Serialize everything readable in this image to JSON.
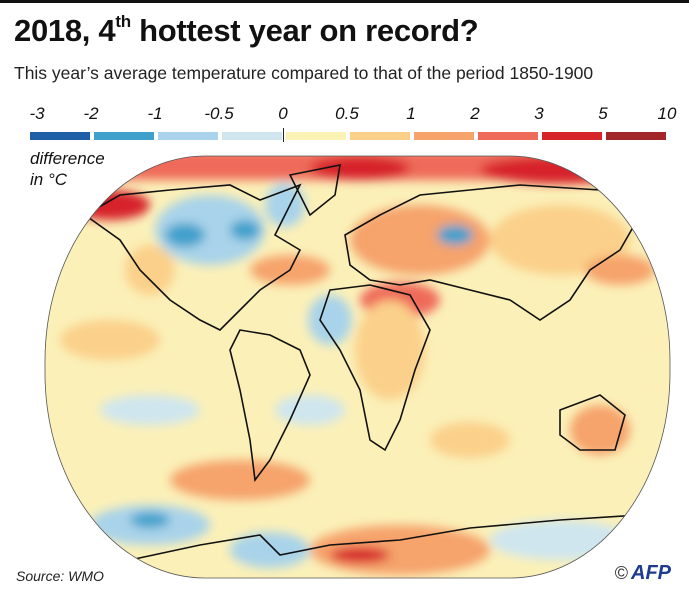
{
  "title": {
    "main": "2018, 4",
    "sup": "th",
    "rest": " hottest year on record?"
  },
  "subtitle": "This year’s average temperature compared to that of the period 1850-1900",
  "legend": {
    "ticks": [
      "-3",
      "-2",
      "-1",
      "-0.5",
      "0",
      "0.5",
      "1",
      "2",
      "3",
      "5",
      "10"
    ],
    "colors": [
      "#1f5fa8",
      "#3fa0cc",
      "#a9d3ea",
      "#cfe6ef",
      "#fbf3b5",
      "#fbd08a",
      "#f6a36c",
      "#ef6b5a",
      "#d7232a",
      "#a3262a"
    ],
    "unit_line1": "difference",
    "unit_line2": "in °C"
  },
  "source": "Source: WMO",
  "credit": {
    "symbol": "©",
    "logo": "AFP"
  }
}
